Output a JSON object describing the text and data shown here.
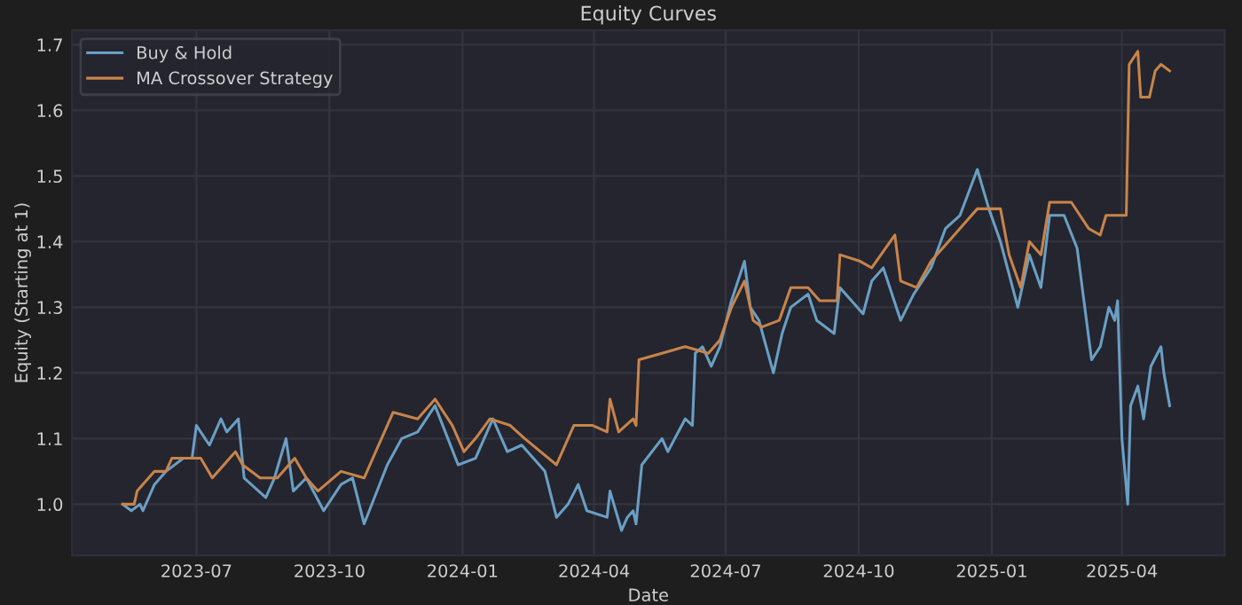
{
  "chart_data": {
    "type": "line",
    "title": "Equity Curves",
    "xlabel": "Date",
    "ylabel": "Equity (Starting at 1)",
    "xlim": [
      "2023-04-06",
      "2025-06-11"
    ],
    "ylim": [
      0.922,
      1.722
    ],
    "xticks": [
      "2023-07",
      "2023-10",
      "2024-01",
      "2024-04",
      "2024-07",
      "2024-10",
      "2025-01",
      "2025-04"
    ],
    "yticks": [
      {
        "value": 1.0,
        "label": "1.0"
      },
      1.1,
      1.2,
      1.3,
      1.4,
      1.5,
      1.6,
      1.7
    ],
    "grid": true,
    "legend": "top left",
    "marker": "none",
    "line_style": "solid",
    "series": [
      {
        "name": "Buy & Hold",
        "color": "#6a9fc4",
        "x": [
          "2023-05-11",
          "2023-05-17",
          "2023-05-23",
          "2023-05-25",
          "2023-06-02",
          "2023-06-10",
          "2023-06-22",
          "2023-06-28",
          "2023-07-01",
          "2023-07-10",
          "2023-07-18",
          "2023-07-22",
          "2023-07-30",
          "2023-08-03",
          "2023-08-18",
          "2023-08-24",
          "2023-09-01",
          "2023-09-06",
          "2023-09-15",
          "2023-09-27",
          "2023-10-09",
          "2023-10-17",
          "2023-10-25",
          "2023-11-10",
          "2023-11-20",
          "2023-12-01",
          "2023-12-13",
          "2023-12-29",
          "2024-01-10",
          "2024-01-22",
          "2024-02-01",
          "2024-02-11",
          "2024-02-19",
          "2024-02-27",
          "2024-03-06",
          "2024-03-14",
          "2024-03-21",
          "2024-03-27",
          "2024-04-10",
          "2024-04-12",
          "2024-04-20",
          "2024-04-24",
          "2024-04-28",
          "2024-04-30",
          "2024-05-04",
          "2024-05-18",
          "2024-05-22",
          "2024-06-03",
          "2024-06-08",
          "2024-06-10",
          "2024-06-15",
          "2024-06-21",
          "2024-06-27",
          "2024-07-05",
          "2024-07-14",
          "2024-07-18",
          "2024-07-24",
          "2024-08-03",
          "2024-08-09",
          "2024-08-15",
          "2024-08-27",
          "2024-09-02",
          "2024-09-14",
          "2024-09-18",
          "2024-09-26",
          "2024-10-04",
          "2024-10-10",
          "2024-10-18",
          "2024-10-30",
          "2024-11-08",
          "2024-11-20",
          "2024-11-30",
          "2024-12-10",
          "2024-12-22",
          "2024-12-30",
          "2025-01-07",
          "2025-01-19",
          "2025-01-27",
          "2025-02-04",
          "2025-02-10",
          "2025-02-20",
          "2025-03-01",
          "2025-03-11",
          "2025-03-17",
          "2025-03-23",
          "2025-03-27",
          "2025-03-29",
          "2025-04-01",
          "2025-04-05",
          "2025-04-07",
          "2025-04-12",
          "2025-04-16",
          "2025-04-21",
          "2025-04-28",
          "2025-04-30",
          "2025-05-04"
        ],
        "values": [
          1.0,
          0.99,
          1.0,
          0.99,
          1.03,
          1.05,
          1.07,
          1.07,
          1.12,
          1.09,
          1.13,
          1.11,
          1.13,
          1.04,
          1.01,
          1.04,
          1.1,
          1.02,
          1.04,
          0.99,
          1.03,
          1.04,
          0.97,
          1.06,
          1.1,
          1.11,
          1.15,
          1.06,
          1.07,
          1.13,
          1.08,
          1.09,
          1.07,
          1.05,
          0.98,
          1.0,
          1.03,
          0.99,
          0.98,
          1.02,
          0.96,
          0.98,
          0.99,
          0.97,
          1.06,
          1.1,
          1.08,
          1.13,
          1.12,
          1.23,
          1.24,
          1.21,
          1.24,
          1.31,
          1.37,
          1.3,
          1.28,
          1.2,
          1.26,
          1.3,
          1.32,
          1.28,
          1.26,
          1.33,
          1.31,
          1.29,
          1.34,
          1.36,
          1.28,
          1.32,
          1.36,
          1.42,
          1.44,
          1.51,
          1.45,
          1.4,
          1.3,
          1.38,
          1.33,
          1.44,
          1.44,
          1.39,
          1.22,
          1.24,
          1.3,
          1.28,
          1.31,
          1.1,
          1.0,
          1.15,
          1.18,
          1.13,
          1.21,
          1.24,
          1.2,
          1.15
        ]
      },
      {
        "name": "MA Crossover Strategy",
        "color": "#c8844a",
        "x": [
          "2023-05-11",
          "2023-05-19",
          "2023-05-21",
          "2023-06-02",
          "2023-06-10",
          "2023-06-14",
          "2023-06-26",
          "2023-07-04",
          "2023-07-12",
          "2023-07-24",
          "2023-07-28",
          "2023-08-02",
          "2023-08-14",
          "2023-08-26",
          "2023-09-07",
          "2023-09-15",
          "2023-09-23",
          "2023-10-09",
          "2023-10-25",
          "2023-11-02",
          "2023-11-14",
          "2023-12-01",
          "2023-12-13",
          "2023-12-25",
          "2024-01-02",
          "2024-01-10",
          "2024-01-20",
          "2024-02-03",
          "2024-02-13",
          "2024-03-06",
          "2024-03-18",
          "2024-03-31",
          "2024-04-10",
          "2024-04-12",
          "2024-04-18",
          "2024-04-28",
          "2024-04-30",
          "2024-05-02",
          "2024-05-18",
          "2024-06-03",
          "2024-06-19",
          "2024-06-27",
          "2024-07-05",
          "2024-07-14",
          "2024-07-20",
          "2024-07-26",
          "2024-08-07",
          "2024-08-15",
          "2024-08-27",
          "2024-09-04",
          "2024-09-16",
          "2024-09-18",
          "2024-10-02",
          "2024-10-10",
          "2024-10-26",
          "2024-10-30",
          "2024-11-10",
          "2024-11-20",
          "2024-12-06",
          "2024-12-22",
          "2025-01-07",
          "2025-01-13",
          "2025-01-21",
          "2025-01-27",
          "2025-02-04",
          "2025-02-10",
          "2025-02-25",
          "2025-03-09",
          "2025-03-17",
          "2025-03-21",
          "2025-04-04",
          "2025-04-06",
          "2025-04-12",
          "2025-04-14",
          "2025-04-20",
          "2025-04-24",
          "2025-04-28",
          "2025-05-04"
        ],
        "values": [
          1.0,
          1.0,
          1.02,
          1.05,
          1.05,
          1.07,
          1.07,
          1.07,
          1.04,
          1.07,
          1.08,
          1.06,
          1.04,
          1.04,
          1.07,
          1.04,
          1.02,
          1.05,
          1.04,
          1.08,
          1.14,
          1.13,
          1.16,
          1.12,
          1.08,
          1.1,
          1.13,
          1.12,
          1.1,
          1.06,
          1.12,
          1.12,
          1.11,
          1.16,
          1.11,
          1.13,
          1.12,
          1.22,
          1.23,
          1.24,
          1.23,
          1.25,
          1.3,
          1.34,
          1.28,
          1.27,
          1.28,
          1.33,
          1.33,
          1.31,
          1.31,
          1.38,
          1.37,
          1.36,
          1.41,
          1.34,
          1.33,
          1.37,
          1.41,
          1.45,
          1.45,
          1.38,
          1.33,
          1.4,
          1.38,
          1.46,
          1.46,
          1.42,
          1.41,
          1.44,
          1.44,
          1.67,
          1.69,
          1.62,
          1.62,
          1.66,
          1.67,
          1.66
        ]
      }
    ]
  }
}
